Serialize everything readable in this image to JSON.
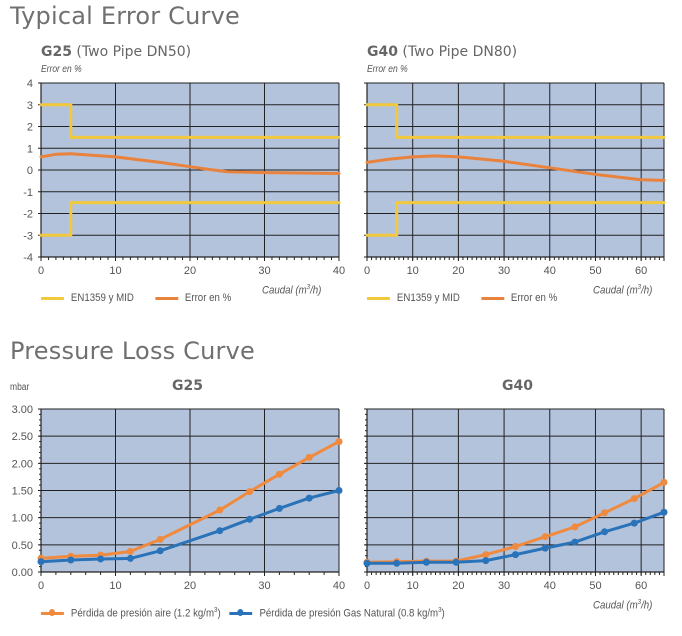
{
  "sections": {
    "error": {
      "title": "Typical Error Curve"
    },
    "pressure": {
      "title": "Pressure Loss Curve"
    }
  },
  "colors": {
    "plot_bg": "#b4c3dc",
    "grid": "#222222",
    "limit": "#f2c83c",
    "error": "#e8823c",
    "air": "#ef8a3e",
    "gas": "#2a73b8"
  },
  "chart_data": [
    {
      "type": "line",
      "title": "G25 (Two Pipe DN50)",
      "title_bold": "G25",
      "title_rest": " (Two Pipe DN50)",
      "ylabel": "Error en %",
      "xlabel": "Caudal (m3/h)",
      "xlabel_pre": "Caudal (m",
      "xlabel_sup": "3",
      "xlabel_post": "/h)",
      "xlim": [
        0,
        40
      ],
      "ylim": [
        -4,
        4
      ],
      "xticks": [
        0,
        10,
        20,
        30,
        40
      ],
      "yticks": [
        -4,
        -3,
        -2,
        -1,
        0,
        1,
        2,
        3,
        4
      ],
      "grid": true,
      "legend": [
        "EN1359 y MID",
        "Error en %"
      ],
      "series": [
        {
          "name": "EN1359 y MID",
          "color_key": "limit",
          "x": [
            0,
            4,
            4,
            40
          ],
          "y": [
            3,
            3,
            1.5,
            1.5
          ]
        },
        {
          "name": "EN1359 y MID",
          "color_key": "limit",
          "x": [
            0,
            4,
            4,
            40
          ],
          "y": [
            -3,
            -3,
            -1.5,
            -1.5
          ]
        },
        {
          "name": "Error en %",
          "color_key": "error",
          "x": [
            0,
            2,
            4,
            10,
            16,
            20,
            22,
            25,
            30,
            35,
            40
          ],
          "y": [
            0.6,
            0.72,
            0.75,
            0.6,
            0.35,
            0.15,
            0.05,
            -0.08,
            -0.12,
            -0.14,
            -0.16
          ]
        }
      ]
    },
    {
      "type": "line",
      "title": "G40 (Two Pipe DN80)",
      "title_bold": "G40",
      "title_rest": " (Two Pipe DN80)",
      "ylabel": "Error en %",
      "xlabel": "Caudal (m3/h)",
      "xlabel_pre": "Caudal (m",
      "xlabel_sup": "3",
      "xlabel_post": "/h)",
      "xlim": [
        0,
        65
      ],
      "ylim": [
        -4,
        4
      ],
      "xticks": [
        0,
        10,
        20,
        30,
        40,
        50,
        60
      ],
      "yticks": [
        -4,
        -3,
        -2,
        -1,
        0,
        1,
        2,
        3,
        4
      ],
      "grid": true,
      "legend": [
        "EN1359 y MID",
        "Error en %"
      ],
      "series": [
        {
          "name": "EN1359 y MID",
          "color_key": "limit",
          "x": [
            0,
            6.5,
            6.5,
            65
          ],
          "y": [
            3,
            3,
            1.5,
            1.5
          ]
        },
        {
          "name": "EN1359 y MID",
          "color_key": "limit",
          "x": [
            0,
            6.5,
            6.5,
            65
          ],
          "y": [
            -3,
            -3,
            -1.5,
            -1.5
          ]
        },
        {
          "name": "Error en %",
          "color_key": "error",
          "x": [
            0,
            5,
            10,
            15,
            20,
            30,
            40,
            50,
            60,
            65
          ],
          "y": [
            0.35,
            0.5,
            0.6,
            0.65,
            0.6,
            0.4,
            0.1,
            -0.2,
            -0.45,
            -0.48
          ]
        }
      ]
    },
    {
      "type": "line",
      "title": "G25",
      "ylabel": "mbar",
      "xlim": [
        0,
        40
      ],
      "ylim": [
        0,
        3
      ],
      "xticks": [
        0,
        10,
        20,
        30,
        40
      ],
      "yticks": [
        "0.00",
        "0.50",
        "1.00",
        "1.50",
        "2.00",
        "2.50",
        "3.00"
      ],
      "grid": true,
      "series": [
        {
          "name": "Pérdida de presión aire (1.2 kg/m3)",
          "color_key": "air",
          "x": [
            0,
            4,
            8,
            12,
            16,
            24,
            28,
            32,
            36,
            40
          ],
          "y": [
            0.25,
            0.29,
            0.31,
            0.38,
            0.6,
            1.14,
            1.48,
            1.8,
            2.11,
            2.4
          ]
        },
        {
          "name": "Pérdida de presión Gas Natural (0.8 kg/m3)",
          "color_key": "gas",
          "x": [
            0,
            4,
            8,
            12,
            16,
            24,
            28,
            32,
            36,
            40
          ],
          "y": [
            0.19,
            0.22,
            0.24,
            0.25,
            0.39,
            0.76,
            0.97,
            1.17,
            1.36,
            1.5
          ]
        }
      ]
    },
    {
      "type": "line",
      "title": "G40",
      "xlabel": "Caudal (m3/h)",
      "xlabel_pre": "Caudal (m",
      "xlabel_sup": "3",
      "xlabel_post": "/h)",
      "xlim": [
        0,
        65
      ],
      "ylim": [
        0,
        3
      ],
      "xticks": [
        0,
        10,
        20,
        30,
        40,
        50,
        60
      ],
      "grid": true,
      "legend": [
        "Pérdida de presión aire (1.2 kg/m3)",
        "Pérdida de presión Gas Natural (0.8 kg/m3)"
      ],
      "series": [
        {
          "name": "Pérdida de presión aire (1.2 kg/m3)",
          "color_key": "air",
          "x": [
            0,
            6.5,
            13,
            19.5,
            26,
            32.5,
            39,
            45.5,
            52,
            58.5,
            65
          ],
          "y": [
            0.18,
            0.19,
            0.2,
            0.2,
            0.32,
            0.47,
            0.65,
            0.83,
            1.09,
            1.35,
            1.65
          ]
        },
        {
          "name": "Pérdida de presión Gas Natural (0.8 kg/m3)",
          "color_key": "gas",
          "x": [
            0,
            6.5,
            13,
            19.5,
            26,
            32.5,
            39,
            45.5,
            52,
            58.5,
            65
          ],
          "y": [
            0.16,
            0.16,
            0.18,
            0.18,
            0.21,
            0.32,
            0.44,
            0.55,
            0.74,
            0.9,
            1.1
          ]
        }
      ]
    }
  ],
  "pressure_legend": {
    "air_pre": "Pérdida de presión aire (1.2 kg/m",
    "gas_pre": "Pérdida de presión Gas Natural (0.8 kg/m",
    "sup": "3",
    "post": ")"
  }
}
